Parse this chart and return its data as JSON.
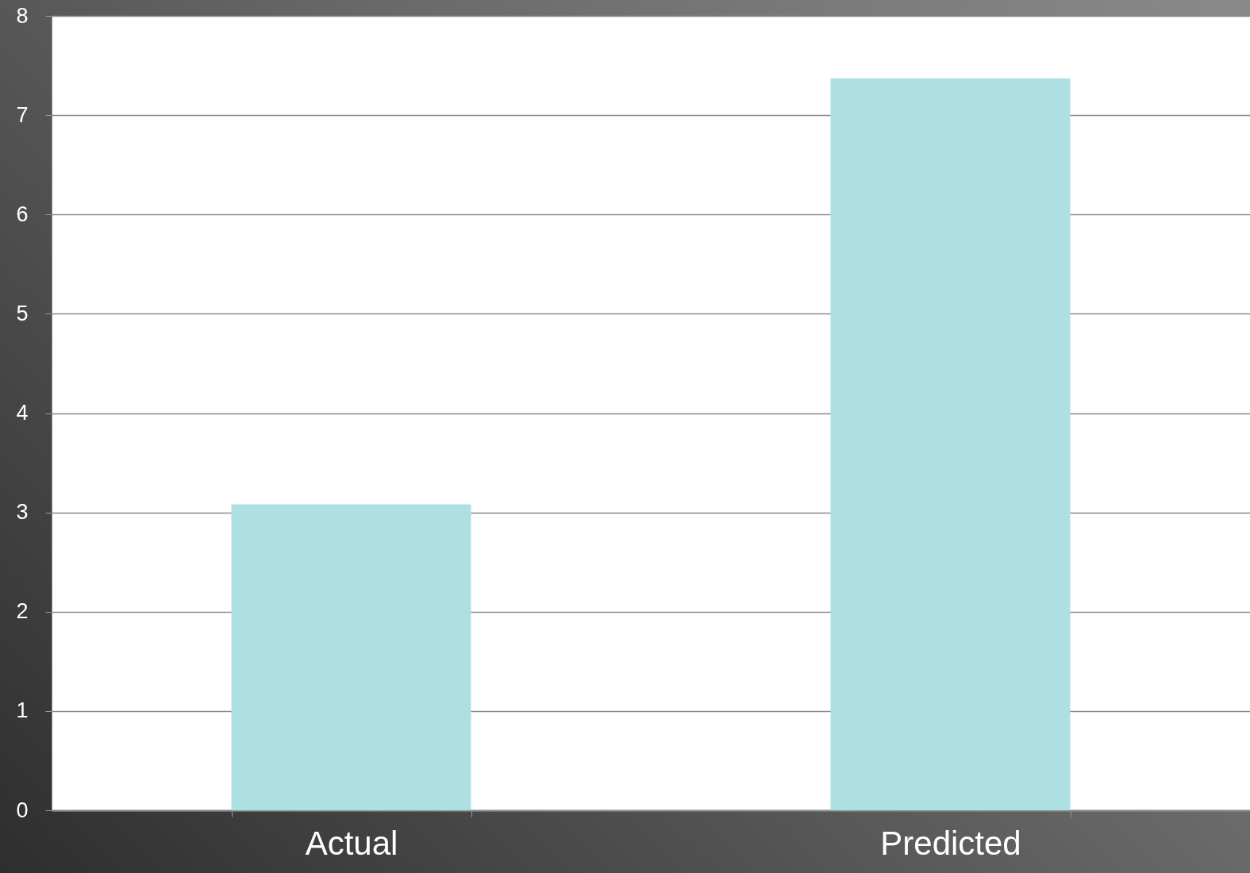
{
  "chart_data": {
    "type": "bar",
    "categories": [
      "Actual",
      "Predicted"
    ],
    "values": [
      3.08,
      7.37
    ],
    "color": "#aee0e3",
    "ylim": [
      0,
      8
    ],
    "yticks": [
      0,
      1,
      2,
      3,
      4,
      5,
      6,
      7,
      8
    ],
    "grid": "y"
  }
}
